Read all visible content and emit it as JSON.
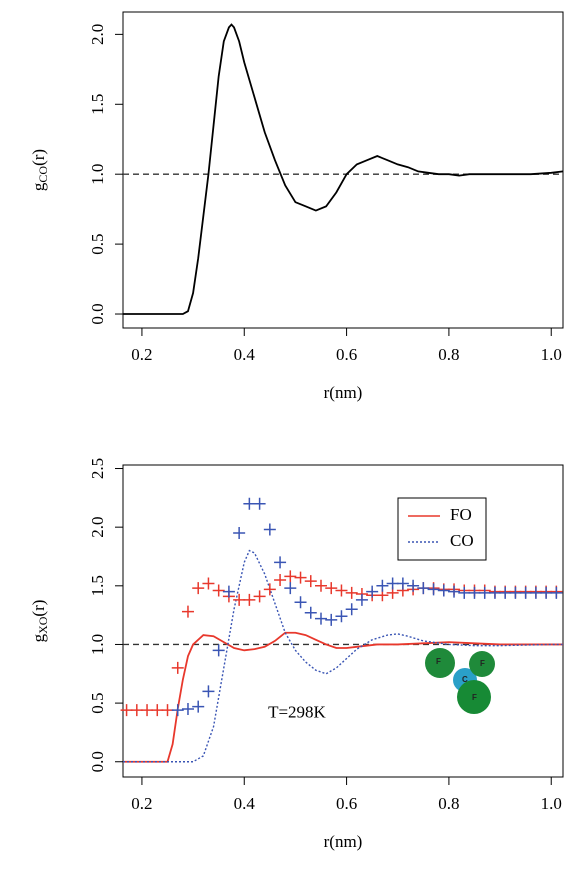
{
  "charts": [
    {
      "chart_data": {
        "type": "line",
        "x_label": "r(nm)",
        "y_label": [
          "g",
          "CO",
          "(r)"
        ],
        "xlim": [
          0.163,
          1.023
        ],
        "ylim": [
          -0.1,
          2.16
        ],
        "xticks": [
          0.2,
          0.4,
          0.6,
          0.8,
          {
            "value": 1,
            "label": "1.0"
          }
        ],
        "yticks": [
          {
            "value": 0,
            "label": "0.0"
          },
          0.5,
          {
            "value": 1,
            "label": "1.0"
          },
          1.5,
          {
            "value": 2,
            "label": "2.0"
          }
        ],
        "hline": 1,
        "series": [
          {
            "kind": "line",
            "style": "solid",
            "color": "#000000",
            "x": [
              0.163,
              0.28,
              0.29,
              0.3,
              0.31,
              0.32,
              0.33,
              0.34,
              0.35,
              0.36,
              0.37,
              0.375,
              0.38,
              0.39,
              0.4,
              0.42,
              0.44,
              0.46,
              0.48,
              0.5,
              0.52,
              0.54,
              0.56,
              0.58,
              0.6,
              0.62,
              0.64,
              0.66,
              0.68,
              0.7,
              0.72,
              0.74,
              0.76,
              0.78,
              0.8,
              0.82,
              0.84,
              0.88,
              0.92,
              0.96,
              1.0,
              1.023
            ],
            "values": [
              0,
              0,
              0.02,
              0.15,
              0.4,
              0.7,
              1.0,
              1.35,
              1.7,
              1.95,
              2.05,
              2.07,
              2.05,
              1.95,
              1.8,
              1.55,
              1.3,
              1.1,
              0.92,
              0.8,
              0.77,
              0.74,
              0.77,
              0.87,
              1.0,
              1.07,
              1.1,
              1.13,
              1.1,
              1.07,
              1.05,
              1.02,
              1.01,
              1.0,
              1.0,
              0.99,
              1.0,
              1.0,
              1.0,
              1.0,
              1.01,
              1.02
            ]
          }
        ]
      }
    },
    {
      "chart_data": {
        "type": "line",
        "x_label": "r(nm)",
        "y_label": [
          "g",
          "XO",
          "(r)"
        ],
        "xlim": [
          0.163,
          1.023
        ],
        "ylim": [
          -0.13,
          2.53
        ],
        "xticks": [
          0.2,
          0.4,
          0.6,
          0.8,
          {
            "value": 1,
            "label": "1.0"
          }
        ],
        "yticks": [
          {
            "value": 0,
            "label": "0.0"
          },
          0.5,
          {
            "value": 1,
            "label": "1.0"
          },
          1.5,
          {
            "value": 2,
            "label": "2.0"
          },
          2.5
        ],
        "hline": 1,
        "annotation": "T=298K",
        "molecule_labels": [
          "F",
          "C",
          "F",
          "F"
        ],
        "series": [
          {
            "name": "FO",
            "kind": "line",
            "style": "solid",
            "color": "#e8382c",
            "x": [
              0.163,
              0.25,
              0.26,
              0.27,
              0.28,
              0.29,
              0.3,
              0.32,
              0.34,
              0.36,
              0.38,
              0.4,
              0.42,
              0.44,
              0.46,
              0.48,
              0.5,
              0.52,
              0.54,
              0.56,
              0.58,
              0.6,
              0.62,
              0.66,
              0.7,
              0.75,
              0.8,
              0.85,
              0.9,
              1.0,
              1.023
            ],
            "values": [
              0,
              0,
              0.15,
              0.45,
              0.7,
              0.9,
              1.0,
              1.08,
              1.07,
              1.02,
              0.97,
              0.95,
              0.96,
              0.98,
              1.03,
              1.1,
              1.1,
              1.08,
              1.04,
              1.0,
              0.97,
              0.97,
              0.98,
              1.0,
              1.0,
              1.01,
              1.02,
              1.01,
              1.0,
              1.0,
              1.0
            ]
          },
          {
            "name": "CO",
            "kind": "line",
            "style": "dotted",
            "color": "#3a55b4",
            "x": [
              0.163,
              0.3,
              0.32,
              0.34,
              0.36,
              0.38,
              0.4,
              0.41,
              0.42,
              0.44,
              0.46,
              0.48,
              0.5,
              0.52,
              0.54,
              0.56,
              0.58,
              0.6,
              0.62,
              0.65,
              0.68,
              0.7,
              0.72,
              0.75,
              0.8,
              0.85,
              0.9,
              1.0,
              1.023
            ],
            "values": [
              0,
              0,
              0.05,
              0.3,
              0.8,
              1.3,
              1.7,
              1.8,
              1.78,
              1.6,
              1.35,
              1.1,
              0.95,
              0.85,
              0.78,
              0.75,
              0.8,
              0.88,
              0.96,
              1.04,
              1.08,
              1.09,
              1.07,
              1.03,
              1.0,
              0.99,
              0.99,
              1.0,
              1.0
            ]
          },
          {
            "kind": "points",
            "color": "#e8382c",
            "x": [
              0.17,
              0.19,
              0.21,
              0.23,
              0.25,
              0.27,
              0.29,
              0.31,
              0.33,
              0.35,
              0.37,
              0.39,
              0.41,
              0.43,
              0.45,
              0.47,
              0.49,
              0.51,
              0.53,
              0.55,
              0.57,
              0.59,
              0.61,
              0.63,
              0.65,
              0.67,
              0.69,
              0.71,
              0.73,
              0.75,
              0.77,
              0.79,
              0.81,
              0.83,
              0.85,
              0.87,
              0.89,
              0.91,
              0.93,
              0.95,
              0.97,
              0.99,
              1.01
            ],
            "values": [
              0.44,
              0.44,
              0.44,
              0.44,
              0.44,
              0.8,
              1.28,
              1.48,
              1.52,
              1.46,
              1.41,
              1.38,
              1.38,
              1.41,
              1.47,
              1.55,
              1.58,
              1.57,
              1.54,
              1.5,
              1.48,
              1.46,
              1.44,
              1.43,
              1.42,
              1.42,
              1.44,
              1.46,
              1.47,
              1.48,
              1.48,
              1.47,
              1.47,
              1.46,
              1.46,
              1.46,
              1.45,
              1.45,
              1.45,
              1.45,
              1.45,
              1.45,
              1.45
            ]
          },
          {
            "kind": "points",
            "color": "#3a55b4",
            "x": [
              0.27,
              0.29,
              0.31,
              0.33,
              0.35,
              0.37,
              0.39,
              0.41,
              0.43,
              0.45,
              0.47,
              0.49,
              0.51,
              0.53,
              0.55,
              0.57,
              0.59,
              0.61,
              0.63,
              0.65,
              0.67,
              0.69,
              0.71,
              0.73,
              0.75,
              0.77,
              0.79,
              0.81,
              0.83,
              0.85,
              0.87,
              0.89,
              0.91,
              0.93,
              0.95,
              0.97,
              0.99,
              1.01
            ],
            "values": [
              0.44,
              0.45,
              0.47,
              0.6,
              0.95,
              1.45,
              1.95,
              2.2,
              2.2,
              1.98,
              1.7,
              1.48,
              1.36,
              1.27,
              1.22,
              1.21,
              1.24,
              1.3,
              1.38,
              1.45,
              1.5,
              1.52,
              1.52,
              1.5,
              1.48,
              1.47,
              1.46,
              1.45,
              1.44,
              1.44,
              1.44,
              1.44,
              1.44,
              1.44,
              1.44,
              1.44,
              1.44,
              1.44
            ]
          }
        ]
      }
    }
  ]
}
